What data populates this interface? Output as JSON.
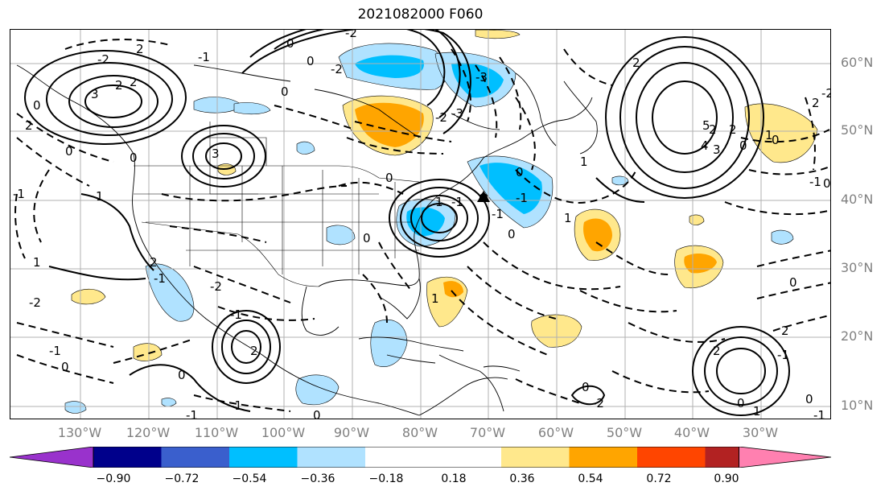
{
  "title": "2021082000 F060",
  "lat_labels": [
    "60°N",
    "50°N",
    "40°N",
    "30°N",
    "20°N",
    "10°N"
  ],
  "lon_labels": [
    "130°W",
    "120°W",
    "110°W",
    "100°W",
    "90°W",
    "80°W",
    "70°W",
    "60°W",
    "50°W",
    "40°W",
    "30°W"
  ],
  "colorbar": {
    "ticks": [
      "−0.90",
      "−0.72",
      "−0.54",
      "−0.36",
      "−0.18",
      "0.18",
      "0.36",
      "0.54",
      "0.72",
      "0.90"
    ],
    "colors": [
      "#9932cc",
      "#00008b",
      "#3a5fcd",
      "#00bfff",
      "#b0e2ff",
      "#ffffff",
      "#ffe88c",
      "#ffa500",
      "#ff4500",
      "#b22222",
      "#ff80b0"
    ]
  },
  "contour_labels": [
    "2",
    "2",
    "2",
    "-2",
    "-1",
    "0",
    "0",
    "0",
    "1",
    "-1",
    "3",
    "2",
    "3",
    "-2",
    "0",
    "0",
    "-2",
    "0",
    "1",
    "2",
    "-2",
    "-1",
    "-1",
    "2",
    "0",
    "-1",
    "-1",
    "0",
    "1",
    "0",
    "0",
    "-1",
    "0",
    "0",
    "-1",
    "-3",
    "-3",
    "-2",
    "1",
    "2",
    "2",
    "2",
    "3",
    "4",
    "5",
    "0",
    "2",
    "1",
    "0",
    "-2",
    "0",
    "-1",
    "1",
    "0",
    "2",
    "2",
    "0",
    "0",
    "-1",
    "0",
    "1",
    "-2",
    "1",
    "-1",
    "-2",
    "0",
    "-1",
    "-1"
  ]
}
